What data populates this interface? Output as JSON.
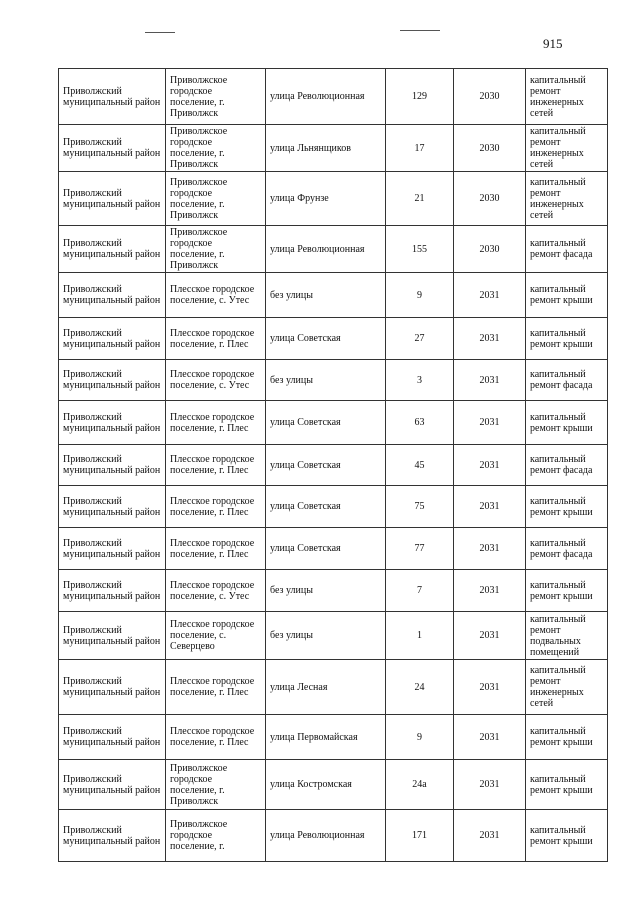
{
  "page_number": "915",
  "rows": [
    [
      "Приволжский муниципальный район",
      "Приволжское городское поселение, г. Приволжск",
      "улица Революционная",
      "129",
      "2030",
      "капитальный ремонт инженерных сетей"
    ],
    [
      "Приволжский муниципальный район",
      "Приволжское городское поселение, г. Приволжск",
      "улица Льнянщиков",
      "17",
      "2030",
      "капитальный ремонт инженерных сетей"
    ],
    [
      "Приволжский муниципальный район",
      "Приволжское городское поселение, г. Приволжск",
      "улица Фрунзе",
      "21",
      "2030",
      "капитальный ремонт инженерных сетей"
    ],
    [
      "Приволжский муниципальный район",
      "Приволжское городское поселение, г. Приволжск",
      "улица Революционная",
      "155",
      "2030",
      "капитальный ремонт фасада"
    ],
    [
      "Приволжский муниципальный район",
      "Плесское городское поселение, с. Утес",
      "без улицы",
      "9",
      "2031",
      "капитальный ремонт крыши"
    ],
    [
      "Приволжский муниципальный район",
      "Плесское городское поселение, г. Плес",
      "улица Советская",
      "27",
      "2031",
      "капитальный ремонт крыши"
    ],
    [
      "Приволжский муниципальный район",
      "Плесское городское поселение, с. Утес",
      "без улицы",
      "3",
      "2031",
      "капитальный ремонт фасада"
    ],
    [
      "Приволжский муниципальный район",
      "Плесское городское поселение, г. Плес",
      "улица Советская",
      "63",
      "2031",
      "капитальный ремонт крыши"
    ],
    [
      "Приволжский муниципальный район",
      "Плесское городское поселение, г. Плес",
      "улица Советская",
      "45",
      "2031",
      "капитальный ремонт фасада"
    ],
    [
      "Приволжский муниципальный район",
      "Плесское городское поселение, г. Плес",
      "улица Советская",
      "75",
      "2031",
      "капитальный ремонт крыши"
    ],
    [
      "Приволжский муниципальный район",
      "Плесское городское поселение, г. Плес",
      "улица Советская",
      "77",
      "2031",
      "капитальный ремонт фасада"
    ],
    [
      "Приволжский муниципальный район",
      "Плесское городское поселение, с. Утес",
      "без улицы",
      "7",
      "2031",
      "капитальный ремонт крыши"
    ],
    [
      "Приволжский муниципальный район",
      "Плесское городское поселение, с. Северцево",
      "без улицы",
      "1",
      "2031",
      "капитальный ремонт подвальных помещений"
    ],
    [
      "Приволжский муниципальный район",
      "Плесское городское поселение, г. Плес",
      "улица Лесная",
      "24",
      "2031",
      "капитальный ремонт инженерных сетей"
    ],
    [
      "Приволжский муниципальный район",
      "Плесское городское поселение, г. Плес",
      "улица Первомайская",
      "9",
      "2031",
      "капитальный ремонт крыши"
    ],
    [
      "Приволжский муниципальный район",
      "Приволжское городское поселение, г. Приволжск",
      "улица Костромская",
      "24а",
      "2031",
      "капитальный ремонт крыши"
    ],
    [
      "Приволжский муниципальный район",
      "Приволжское городское поселение, г.",
      "улица Революционная",
      "171",
      "2031",
      "капитальный ремонт крыши"
    ]
  ]
}
